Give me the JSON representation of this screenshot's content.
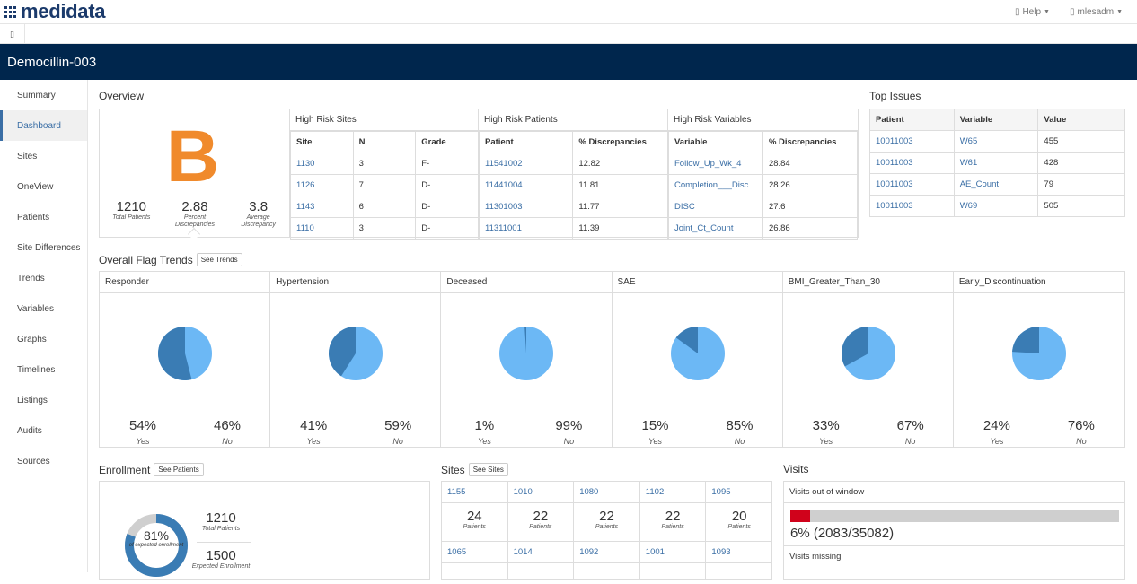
{
  "brand": "medidata",
  "top_menu": {
    "help": "Help",
    "user": "mlesadm"
  },
  "study_title": "Democillin-003",
  "sidebar": [
    "Summary",
    "Dashboard",
    "Sites",
    "OneView",
    "Patients",
    "Site Differences",
    "Trends",
    "Variables",
    "Graphs",
    "Timelines",
    "Listings",
    "Audits",
    "Sources"
  ],
  "overview": {
    "title": "Overview",
    "grade": "B",
    "colors": {
      "grade": "#f08a2c",
      "pie_dark": "#3a7cb4",
      "pie_light": "#6cb8f5",
      "bar_fill": "#d0021b"
    },
    "stats": [
      {
        "value": "1210",
        "label": "Total Patients"
      },
      {
        "value": "2.88",
        "label": "Percent Discrepancies"
      },
      {
        "value": "3.8",
        "label": "Average Discrepancy"
      }
    ],
    "high_risk_sites": {
      "title": "High Risk Sites",
      "headers": [
        "Site",
        "N",
        "Grade"
      ],
      "rows": [
        [
          "1130",
          "3",
          "F-"
        ],
        [
          "1126",
          "7",
          "D-"
        ],
        [
          "1143",
          "6",
          "D-"
        ],
        [
          "1110",
          "3",
          "D-"
        ]
      ]
    },
    "high_risk_patients": {
      "title": "High Risk Patients",
      "headers": [
        "Patient",
        "% Discrepancies"
      ],
      "rows": [
        [
          "11541002",
          "12.82"
        ],
        [
          "11441004",
          "11.81"
        ],
        [
          "11301003",
          "11.77"
        ],
        [
          "11311001",
          "11.39"
        ]
      ]
    },
    "high_risk_variables": {
      "title": "High Risk Variables",
      "headers": [
        "Variable",
        "% Discrepancies"
      ],
      "rows": [
        [
          "Follow_Up_Wk_4",
          "28.84"
        ],
        [
          "Completion___Disc...",
          "28.26"
        ],
        [
          "DISC",
          "27.6"
        ],
        [
          "Joint_Ct_Count",
          "26.86"
        ]
      ]
    }
  },
  "top_issues": {
    "title": "Top Issues",
    "headers": [
      "Patient",
      "Variable",
      "Value"
    ],
    "rows": [
      [
        "10011003",
        "W65",
        "455"
      ],
      [
        "10011003",
        "W61",
        "428"
      ],
      [
        "10011003",
        "AE_Count",
        "79"
      ],
      [
        "10011003",
        "W69",
        "505"
      ]
    ]
  },
  "trends": {
    "title": "Overall Flag Trends",
    "button": "See Trends",
    "yes_label": "Yes",
    "no_label": "No",
    "items": [
      {
        "name": "Responder",
        "yes": 54,
        "no": 46,
        "yes_text": "54%",
        "no_text": "46%"
      },
      {
        "name": "Hypertension",
        "yes": 41,
        "no": 59,
        "yes_text": "41%",
        "no_text": "59%"
      },
      {
        "name": "Deceased",
        "yes": 1,
        "no": 99,
        "yes_text": "1%",
        "no_text": "99%"
      },
      {
        "name": "SAE",
        "yes": 15,
        "no": 85,
        "yes_text": "15%",
        "no_text": "85%"
      },
      {
        "name": "BMI_Greater_Than_30",
        "yes": 33,
        "no": 67,
        "yes_text": "33%",
        "no_text": "67%"
      },
      {
        "name": "Early_Discontinuation",
        "yes": 24,
        "no": 76,
        "yes_text": "24%",
        "no_text": "76%"
      }
    ]
  },
  "enrollment": {
    "title": "Enrollment",
    "button": "See Patients",
    "percent": 81,
    "percent_text": "81%",
    "percent_label": "of expected enrollment",
    "total_patients": "1210",
    "total_label": "Total Patients",
    "expected": "1500",
    "expected_label": "Expected Enrollment"
  },
  "sites": {
    "title": "Sites",
    "button": "See Sites",
    "patients_label": "Patients",
    "row1": [
      {
        "id": "1155",
        "count": "24"
      },
      {
        "id": "1010",
        "count": "22"
      },
      {
        "id": "1080",
        "count": "22"
      },
      {
        "id": "1102",
        "count": "22"
      },
      {
        "id": "1095",
        "count": "20"
      }
    ],
    "row2": [
      "1065",
      "1014",
      "1092",
      "1001",
      "1093"
    ]
  },
  "visits": {
    "title": "Visits",
    "out_of_window_title": "Visits out of window",
    "out_of_window_fraction": 0.06,
    "out_of_window_text": "6% (2083/35082)",
    "missing_title": "Visits missing"
  }
}
